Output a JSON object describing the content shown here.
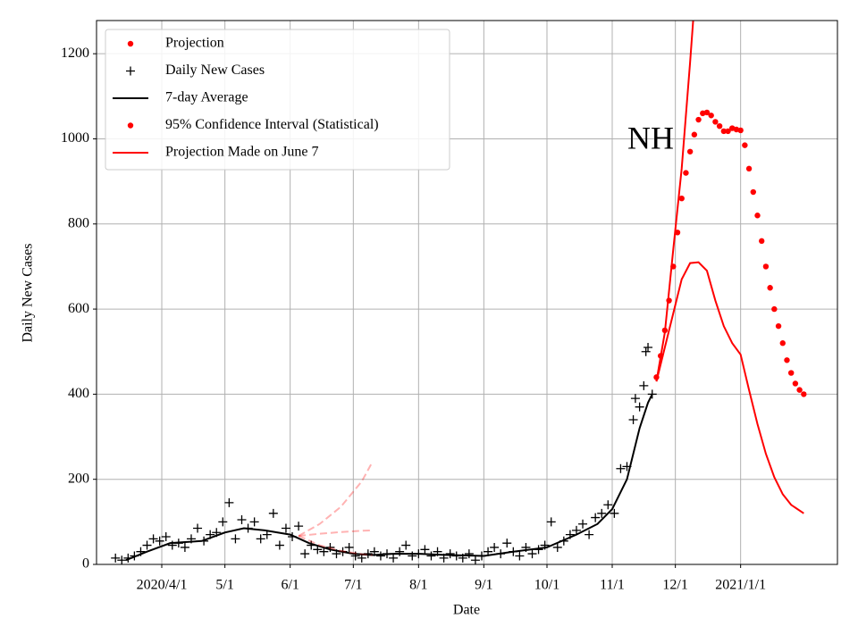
{
  "chart_data": {
    "type": "line",
    "annotation": "NH",
    "xlabel": "Date",
    "ylabel": "Daily New Cases",
    "xlim": [
      "2020-03-01",
      "2021-02-16"
    ],
    "ylim": [
      0,
      1278
    ],
    "yticks": [
      0,
      200,
      400,
      600,
      800,
      1000,
      1200
    ],
    "xticks": [
      {
        "value": "2020-04-01",
        "label": "2020/4/1"
      },
      {
        "value": "2020-05-01",
        "label": "5/1"
      },
      {
        "value": "2020-06-01",
        "label": "6/1"
      },
      {
        "value": "2020-07-01",
        "label": "7/1"
      },
      {
        "value": "2020-08-01",
        "label": "8/1"
      },
      {
        "value": "2020-09-01",
        "label": "9/1"
      },
      {
        "value": "2020-10-01",
        "label": "10/1"
      },
      {
        "value": "2020-11-01",
        "label": "11/1"
      },
      {
        "value": "2020-12-01",
        "label": "12/1"
      },
      {
        "value": "2021-01-01",
        "label": "2021/1/1"
      }
    ],
    "grid": true,
    "legend": "upper left",
    "series": [
      {
        "name": "Projection",
        "color": "#ff0000",
        "style": "dots",
        "legend_marker": "dot",
        "x": [
          "2020-11-22",
          "2020-11-24",
          "2020-11-26",
          "2020-11-28",
          "2020-11-30",
          "2020-12-02",
          "2020-12-04",
          "2020-12-06",
          "2020-12-08",
          "2020-12-10",
          "2020-12-12",
          "2020-12-14",
          "2020-12-16",
          "2020-12-18",
          "2020-12-20",
          "2020-12-22",
          "2020-12-24",
          "2020-12-26",
          "2020-12-28",
          "2020-12-30",
          "2021-01-01",
          "2021-01-03",
          "2021-01-05",
          "2021-01-07",
          "2021-01-09",
          "2021-01-11",
          "2021-01-13",
          "2021-01-15",
          "2021-01-17",
          "2021-01-19",
          "2021-01-21",
          "2021-01-23",
          "2021-01-25",
          "2021-01-27",
          "2021-01-29",
          "2021-01-31"
        ],
        "values": [
          440,
          490,
          550,
          620,
          700,
          780,
          860,
          920,
          970,
          1010,
          1045,
          1060,
          1062,
          1055,
          1040,
          1030,
          1018,
          1018,
          1025,
          1022,
          1020,
          985,
          930,
          875,
          820,
          760,
          700,
          650,
          600,
          560,
          520,
          480,
          450,
          425,
          410,
          400
        ]
      },
      {
        "name": "Daily New Cases",
        "color": "#000000",
        "style": "plus",
        "legend_marker": "plus",
        "x": [
          "2020-03-10",
          "2020-03-13",
          "2020-03-16",
          "2020-03-19",
          "2020-03-22",
          "2020-03-25",
          "2020-03-28",
          "2020-03-31",
          "2020-04-03",
          "2020-04-06",
          "2020-04-09",
          "2020-04-12",
          "2020-04-15",
          "2020-04-18",
          "2020-04-21",
          "2020-04-24",
          "2020-04-27",
          "2020-04-30",
          "2020-05-03",
          "2020-05-06",
          "2020-05-09",
          "2020-05-12",
          "2020-05-15",
          "2020-05-18",
          "2020-05-21",
          "2020-05-24",
          "2020-05-27",
          "2020-05-30",
          "2020-06-02",
          "2020-06-05",
          "2020-06-08",
          "2020-06-11",
          "2020-06-14",
          "2020-06-17",
          "2020-06-20",
          "2020-06-23",
          "2020-06-26",
          "2020-06-29",
          "2020-07-02",
          "2020-07-05",
          "2020-07-08",
          "2020-07-11",
          "2020-07-14",
          "2020-07-17",
          "2020-07-20",
          "2020-07-23",
          "2020-07-26",
          "2020-07-29",
          "2020-08-01",
          "2020-08-04",
          "2020-08-07",
          "2020-08-10",
          "2020-08-13",
          "2020-08-16",
          "2020-08-19",
          "2020-08-22",
          "2020-08-25",
          "2020-08-28",
          "2020-08-31",
          "2020-09-03",
          "2020-09-06",
          "2020-09-09",
          "2020-09-12",
          "2020-09-15",
          "2020-09-18",
          "2020-09-21",
          "2020-09-24",
          "2020-09-27",
          "2020-09-30",
          "2020-10-03",
          "2020-10-06",
          "2020-10-09",
          "2020-10-12",
          "2020-10-15",
          "2020-10-18",
          "2020-10-21",
          "2020-10-24",
          "2020-10-27",
          "2020-10-30",
          "2020-11-02",
          "2020-11-05",
          "2020-11-08",
          "2020-11-11",
          "2020-11-12",
          "2020-11-14",
          "2020-11-16",
          "2020-11-17",
          "2020-11-18",
          "2020-11-20"
        ],
        "values": [
          15,
          10,
          15,
          20,
          30,
          45,
          60,
          55,
          65,
          45,
          50,
          40,
          60,
          85,
          55,
          70,
          75,
          100,
          145,
          60,
          105,
          85,
          100,
          60,
          70,
          120,
          45,
          85,
          65,
          90,
          25,
          45,
          35,
          30,
          40,
          25,
          30,
          40,
          20,
          15,
          25,
          30,
          20,
          25,
          15,
          30,
          45,
          20,
          25,
          35,
          20,
          30,
          15,
          25,
          20,
          15,
          25,
          10,
          20,
          30,
          40,
          25,
          50,
          30,
          20,
          40,
          25,
          35,
          45,
          100,
          40,
          55,
          70,
          80,
          95,
          70,
          110,
          120,
          140,
          120,
          225,
          230,
          340,
          390,
          370,
          420,
          500,
          510,
          400
        ]
      },
      {
        "name": "7-day Average",
        "color": "#000000",
        "style": "line",
        "legend_marker": "line",
        "x": [
          "2020-03-15",
          "2020-03-25",
          "2020-04-05",
          "2020-04-20",
          "2020-05-01",
          "2020-05-10",
          "2020-05-20",
          "2020-06-01",
          "2020-06-10",
          "2020-06-20",
          "2020-07-01",
          "2020-07-10",
          "2020-07-20",
          "2020-08-01",
          "2020-08-15",
          "2020-09-01",
          "2020-09-15",
          "2020-10-01",
          "2020-10-15",
          "2020-10-25",
          "2020-11-01",
          "2020-11-08",
          "2020-11-14",
          "2020-11-18",
          "2020-11-20"
        ],
        "values": [
          10,
          30,
          50,
          55,
          75,
          85,
          80,
          70,
          50,
          35,
          25,
          22,
          25,
          25,
          22,
          20,
          30,
          40,
          70,
          95,
          130,
          200,
          320,
          380,
          400
        ]
      },
      {
        "name": "95% Confidence Interval (Statistical)",
        "color": "#ff0000",
        "style": "band-lines",
        "legend_marker": "dot",
        "x": [
          "2020-11-22",
          "2020-11-26",
          "2020-11-30",
          "2020-12-04",
          "2020-12-08",
          "2020-12-12",
          "2020-12-16",
          "2020-12-20",
          "2020-12-24",
          "2020-12-28",
          "2021-01-01",
          "2021-01-05",
          "2021-01-09",
          "2021-01-13",
          "2021-01-17",
          "2021-01-21",
          "2021-01-25",
          "2021-01-31"
        ],
        "upper": [
          430,
          545,
          740,
          930,
          1180,
          1450,
          null,
          null,
          null,
          null,
          null,
          null,
          null,
          null,
          null,
          null,
          null,
          null
        ],
        "lower": [
          430,
          510,
          590,
          670,
          708,
          710,
          690,
          620,
          560,
          520,
          493,
          410,
          330,
          260,
          205,
          165,
          140,
          120
        ]
      },
      {
        "name": "Projection Made on June 7",
        "color": "#ff0000",
        "style": "dashed-fan",
        "legend_marker": "line",
        "alpha": 0.3,
        "x": [
          "2020-06-05",
          "2020-06-15",
          "2020-06-25",
          "2020-07-05",
          "2020-07-10"
        ],
        "upper": [
          67,
          95,
          135,
          195,
          240
        ],
        "values": [
          67,
          72,
          76,
          79,
          80
        ],
        "lower": [
          67,
          45,
          32,
          24,
          22
        ]
      }
    ]
  }
}
